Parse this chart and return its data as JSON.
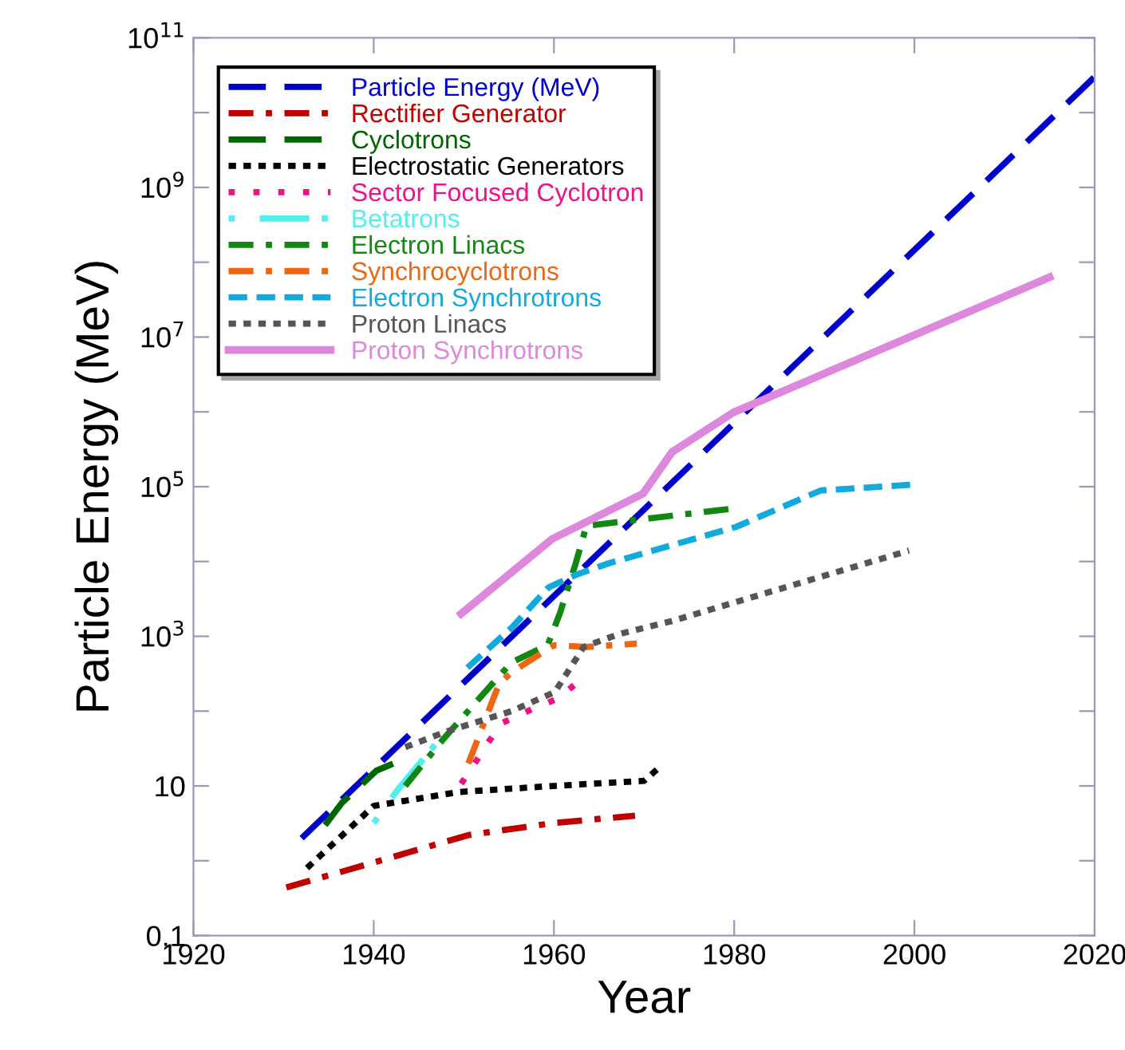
{
  "chart_data": {
    "type": "line",
    "xlabel": "Year",
    "ylabel": "Particle Energy (MeV)",
    "log": "y",
    "grid": false,
    "legend": "top left",
    "marker": "none",
    "xlim": [
      1920,
      2020
    ],
    "xticks": [
      1920,
      1940,
      1960,
      1980,
      2000,
      2020
    ],
    "ylim": [
      0.1,
      100000000000
    ],
    "yticks": [
      0.1,
      {
        "value": 1,
        "label": null
      },
      10,
      {
        "value": 100,
        "label": null
      },
      {
        "value": 1000,
        "label": "10$^{3}$"
      },
      {
        "value": 10000,
        "label": null
      },
      {
        "value": 100000,
        "label": "10$^{5}$"
      },
      {
        "value": 1000000,
        "label": null
      },
      {
        "value": 10000000,
        "label": "10$^{7}$"
      },
      {
        "value": 100000000,
        "label": null
      },
      {
        "value": 1000000000,
        "label": "10$^{9}$"
      },
      {
        "value": 10000000000,
        "label": null
      },
      {
        "value": 100000000000,
        "label": "10$^{11}$"
      }
    ],
    "series": [
      {
        "name": "Particle Energy (MeV)",
        "color": "#0000cc",
        "line_style": "longdash",
        "x": [
          1932,
          2020
        ],
        "values": [
          2,
          30000000000
        ]
      },
      {
        "name": "Rectifier Generator",
        "color": "#c00000",
        "line_style": "dashdot",
        "x": [
          1930.3,
          1936.2,
          1950.5,
          1960,
          1969
        ],
        "values": [
          0.44,
          0.7,
          2.2,
          3.2,
          4
        ]
      },
      {
        "name": "Cyclotrons",
        "color": "#006600",
        "line_style": "longdash",
        "x": [
          1934.6,
          1936.5,
          1940.3,
          1943
        ],
        "values": [
          3,
          6,
          16,
          22
        ]
      },
      {
        "name": "Electrostatic Generators",
        "color": "#000000",
        "line_style": "dotted",
        "x": [
          1932.6,
          1940,
          1949.5,
          1960,
          1970,
          1972
        ],
        "values": [
          0.8,
          5.4,
          8.3,
          10,
          11.7,
          19
        ]
      },
      {
        "name": "Sector Focused Cyclotron",
        "color": "#ee1188",
        "line_style": "sparse",
        "x": [
          1949.7,
          1951.2,
          1952.7,
          1954.2,
          1958,
          1960.3,
          1962.4
        ],
        "values": [
          10.7,
          20,
          38,
          69,
          112,
          145,
          230
        ]
      },
      {
        "name": "Betatrons",
        "color": "#55eeee",
        "line_style": "dotlong",
        "x": [
          1940,
          1942.6,
          1947
        ],
        "values": [
          3.2,
          8.7,
          38
        ]
      },
      {
        "name": "Electron Linacs",
        "color": "#118811",
        "line_style": "dashdot",
        "x": [
          1943.5,
          1947.7,
          1951.3,
          1955.3,
          1959.3,
          1960.7,
          1962.4,
          1963.6,
          1979.9
        ],
        "values": [
          10,
          42,
          130,
          450,
          760,
          2100,
          9300,
          30000,
          51000
        ]
      },
      {
        "name": "Synchrocyclotrons",
        "color": "#ee6611",
        "line_style": "dashdot",
        "x": [
          1950.5,
          1953.9,
          1955.3,
          1960,
          1963.6,
          1969.2
        ],
        "values": [
          20,
          230,
          330,
          760,
          720,
          800
        ]
      },
      {
        "name": "Electron Synchrotrons",
        "color": "#11aadd",
        "line_style": "dashed",
        "x": [
          1950.4,
          1955.3,
          1959.4,
          1962.4,
          1966,
          1980.2,
          1989.6,
          2000.1
        ],
        "values": [
          380,
          1300,
          4500,
          6600,
          9400,
          29000,
          89000,
          107000
        ]
      },
      {
        "name": "Proton Linacs",
        "color": "#555555",
        "line_style": "dotted",
        "x": [
          1943.5,
          1948.2,
          1955.3,
          1960.1,
          1963.3,
          1967.2,
          1973.1,
          1999.4
        ],
        "values": [
          33,
          54,
          100,
          180,
          720,
          1070,
          1600,
          14000
        ]
      },
      {
        "name": "Proton Synchrotrons",
        "color": "#dd88dd",
        "line_style": "solid",
        "x": [
          1949.7,
          1959.8,
          1969.9,
          1973.1,
          1979.9,
          2015
        ],
        "values": [
          2000,
          20000,
          81000,
          290000,
          980000,
          63000000
        ]
      }
    ]
  }
}
